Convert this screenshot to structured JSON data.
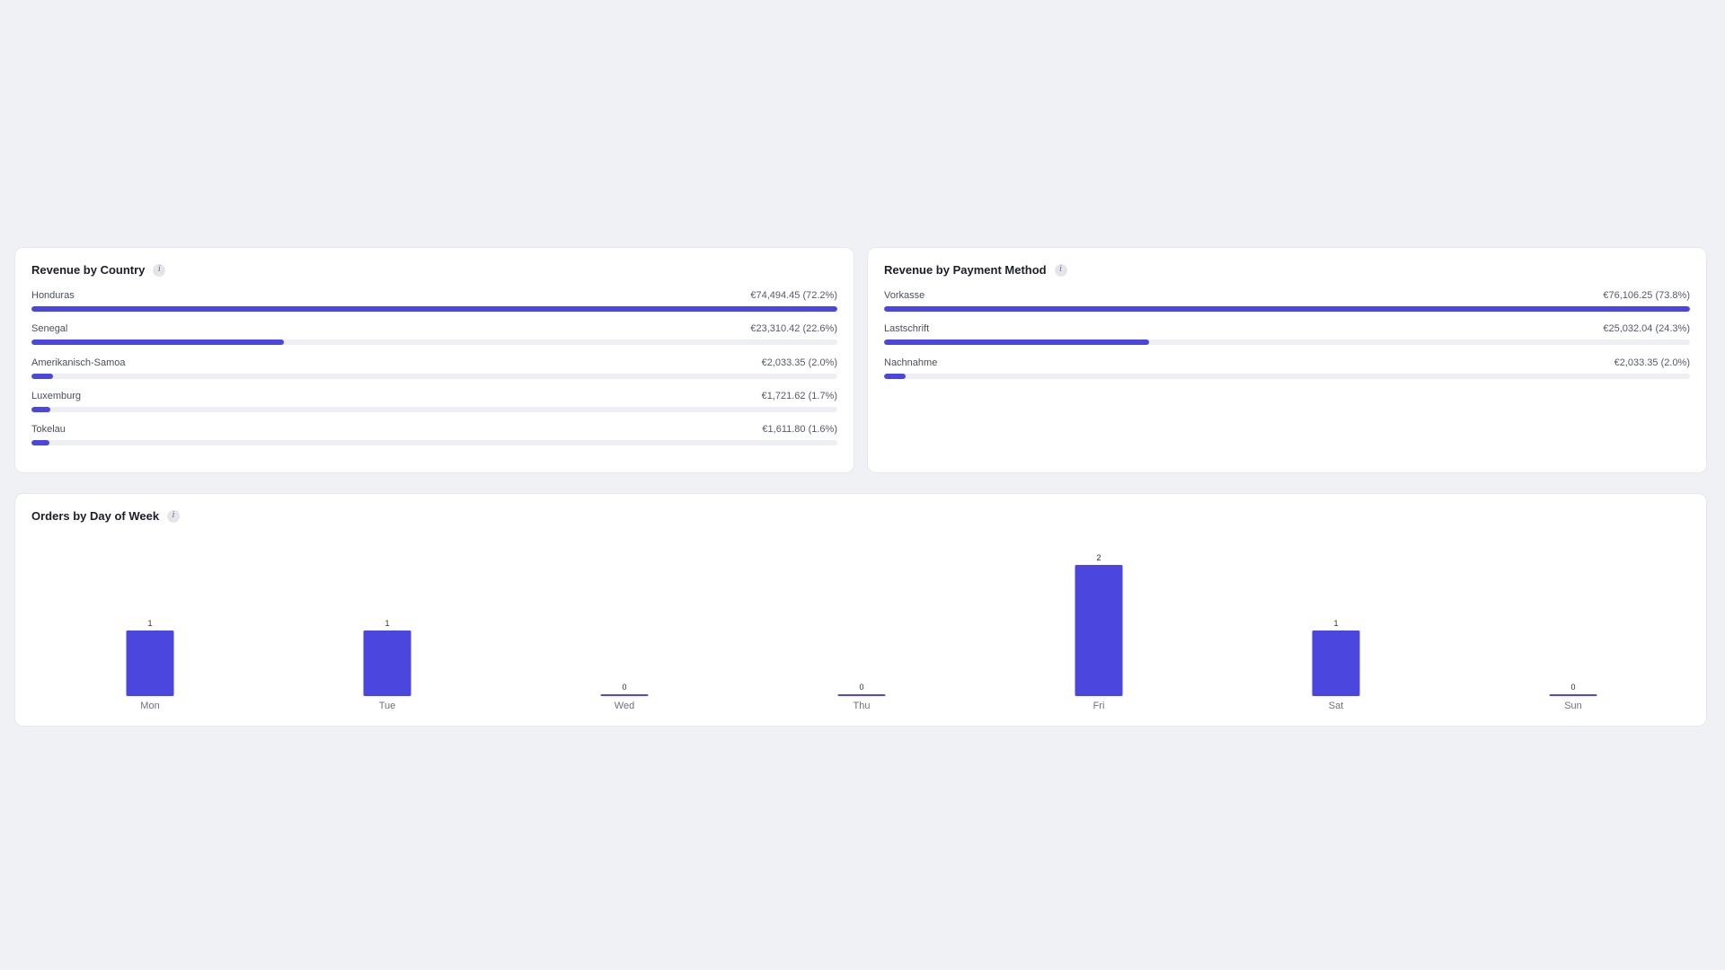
{
  "country_card": {
    "title": "Revenue by Country",
    "rows": [
      {
        "label": "Honduras",
        "value": "€74,494.45 (72.2%)",
        "fraction": 1.0
      },
      {
        "label": "Senegal",
        "value": "€23,310.42 (22.6%)",
        "fraction": 0.313
      },
      {
        "label": "Amerikanisch-Samoa",
        "value": "€2,033.35 (2.0%)",
        "fraction": 0.027
      },
      {
        "label": "Luxemburg",
        "value": "€1,721.62 (1.7%)",
        "fraction": 0.023
      },
      {
        "label": "Tokelau",
        "value": "€1,611.80 (1.6%)",
        "fraction": 0.022
      }
    ]
  },
  "payment_card": {
    "title": "Revenue by Payment Method",
    "rows": [
      {
        "label": "Vorkasse",
        "value": "€76,106.25 (73.8%)",
        "fraction": 1.0
      },
      {
        "label": "Lastschrift",
        "value": "€25,032.04 (24.3%)",
        "fraction": 0.329
      },
      {
        "label": "Nachnahme",
        "value": "€2,033.35 (2.0%)",
        "fraction": 0.027
      }
    ]
  },
  "dow_card": {
    "title": "Orders by Day of Week"
  },
  "chart_data": {
    "type": "bar",
    "categories": [
      "Mon",
      "Tue",
      "Wed",
      "Thu",
      "Fri",
      "Sat",
      "Sun"
    ],
    "values": [
      1,
      1,
      0,
      0,
      2,
      1,
      0
    ],
    "ylim": [
      0,
      2
    ],
    "grid": false,
    "data_labels": true
  },
  "colors": {
    "bar": "#4b46dd",
    "track": "#eeeff2",
    "background": "#f0f1f5"
  },
  "icons": {
    "info": "info-icon"
  }
}
